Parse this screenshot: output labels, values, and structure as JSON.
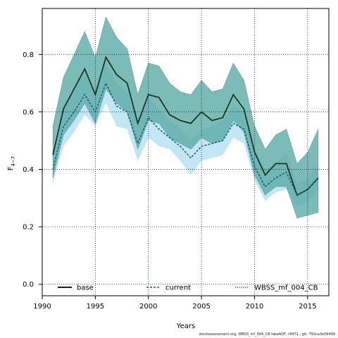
{
  "chart_data": {
    "type": "line",
    "xlabel": "Years",
    "ylabel_main": "F",
    "ylabel_sub": "4−7",
    "xlim": [
      1990,
      2017
    ],
    "ylim": [
      -0.04,
      0.96
    ],
    "x_ticks": [
      1990,
      1995,
      2000,
      2005,
      2010,
      2015
    ],
    "y_ticks": [
      0.0,
      0.2,
      0.4,
      0.6,
      0.8
    ],
    "y_tick_labels": [
      "0.0",
      "0.2",
      "0.4",
      "0.6",
      "0.8"
    ],
    "grid": "dotted",
    "legend_position": "bottom",
    "x": [
      1991,
      1992,
      1993,
      1994,
      1995,
      1996,
      1997,
      1998,
      1999,
      2000,
      2001,
      2002,
      2003,
      2004,
      2005,
      2006,
      2007,
      2008,
      2009,
      2010,
      2011,
      2012,
      2013,
      2014,
      2015,
      2016
    ],
    "series": [
      {
        "name": "base",
        "color": "#000000",
        "dash": "solid",
        "band_color": "#58aebf",
        "values": [
          0.45,
          0.61,
          0.68,
          0.75,
          0.66,
          0.79,
          0.73,
          0.7,
          0.56,
          0.66,
          0.65,
          0.59,
          0.57,
          0.56,
          0.6,
          0.57,
          0.58,
          0.66,
          0.61,
          0.46,
          0.38,
          0.42,
          0.42,
          0.31,
          0.33,
          0.37
        ],
        "lower": [
          0.37,
          0.52,
          0.57,
          0.63,
          0.56,
          0.68,
          0.63,
          0.6,
          0.47,
          0.57,
          0.56,
          0.51,
          0.49,
          0.47,
          0.51,
          0.49,
          0.5,
          0.57,
          0.53,
          0.38,
          0.31,
          0.34,
          0.34,
          0.23,
          0.24,
          0.25
        ],
        "upper": [
          0.55,
          0.72,
          0.8,
          0.88,
          0.79,
          0.93,
          0.86,
          0.82,
          0.66,
          0.77,
          0.76,
          0.7,
          0.67,
          0.66,
          0.71,
          0.67,
          0.68,
          0.77,
          0.71,
          0.55,
          0.47,
          0.52,
          0.54,
          0.42,
          0.46,
          0.54
        ]
      },
      {
        "name": "current",
        "color": "#1a5a78",
        "dash": "dashed",
        "band_color": "#87ceeb",
        "values": [
          0.4,
          0.55,
          0.6,
          0.66,
          0.6,
          0.7,
          0.62,
          0.6,
          0.49,
          0.58,
          0.54,
          0.51,
          0.48,
          0.44,
          0.48,
          0.49,
          0.5,
          0.56,
          0.54,
          0.41,
          0.34,
          0.37,
          0.39,
          0.31,
          0.33,
          0.37
        ],
        "lower": [
          0.35,
          0.48,
          0.53,
          0.59,
          0.55,
          0.63,
          0.55,
          0.54,
          0.43,
          0.51,
          0.48,
          0.47,
          0.43,
          0.38,
          0.43,
          0.44,
          0.45,
          0.51,
          0.49,
          0.36,
          0.29,
          0.32,
          0.33,
          0.27,
          0.29,
          0.33
        ],
        "upper": [
          0.46,
          0.62,
          0.68,
          0.74,
          0.67,
          0.77,
          0.7,
          0.67,
          0.56,
          0.65,
          0.61,
          0.57,
          0.54,
          0.5,
          0.54,
          0.55,
          0.57,
          0.62,
          0.6,
          0.47,
          0.4,
          0.42,
          0.46,
          0.35,
          0.37,
          0.42
        ]
      },
      {
        "name": "WBSS_mf_004_CB",
        "color": "#1d6e2e",
        "dash": "dotted",
        "band_color": "#5ba89a",
        "values": [
          0.45,
          0.61,
          0.68,
          0.75,
          0.66,
          0.79,
          0.73,
          0.7,
          0.56,
          0.66,
          0.65,
          0.59,
          0.57,
          0.56,
          0.6,
          0.57,
          0.58,
          0.66,
          0.61,
          0.46,
          0.38,
          0.42,
          0.42,
          0.31,
          0.33,
          0.37
        ],
        "lower": [
          0.37,
          0.52,
          0.57,
          0.63,
          0.56,
          0.68,
          0.63,
          0.6,
          0.47,
          0.57,
          0.56,
          0.51,
          0.49,
          0.47,
          0.51,
          0.49,
          0.5,
          0.57,
          0.53,
          0.38,
          0.31,
          0.34,
          0.34,
          0.23,
          0.24,
          0.25
        ],
        "upper": [
          0.55,
          0.72,
          0.8,
          0.88,
          0.79,
          0.93,
          0.86,
          0.82,
          0.66,
          0.77,
          0.76,
          0.7,
          0.67,
          0.66,
          0.71,
          0.67,
          0.68,
          0.77,
          0.71,
          0.55,
          0.47,
          0.52,
          0.54,
          0.42,
          0.46,
          0.54
        ]
      }
    ]
  },
  "footer_text": "stockassessment.org,  WBSS_mf_004_CB fakeADF,  r9471 , git: 792ca3e56499"
}
